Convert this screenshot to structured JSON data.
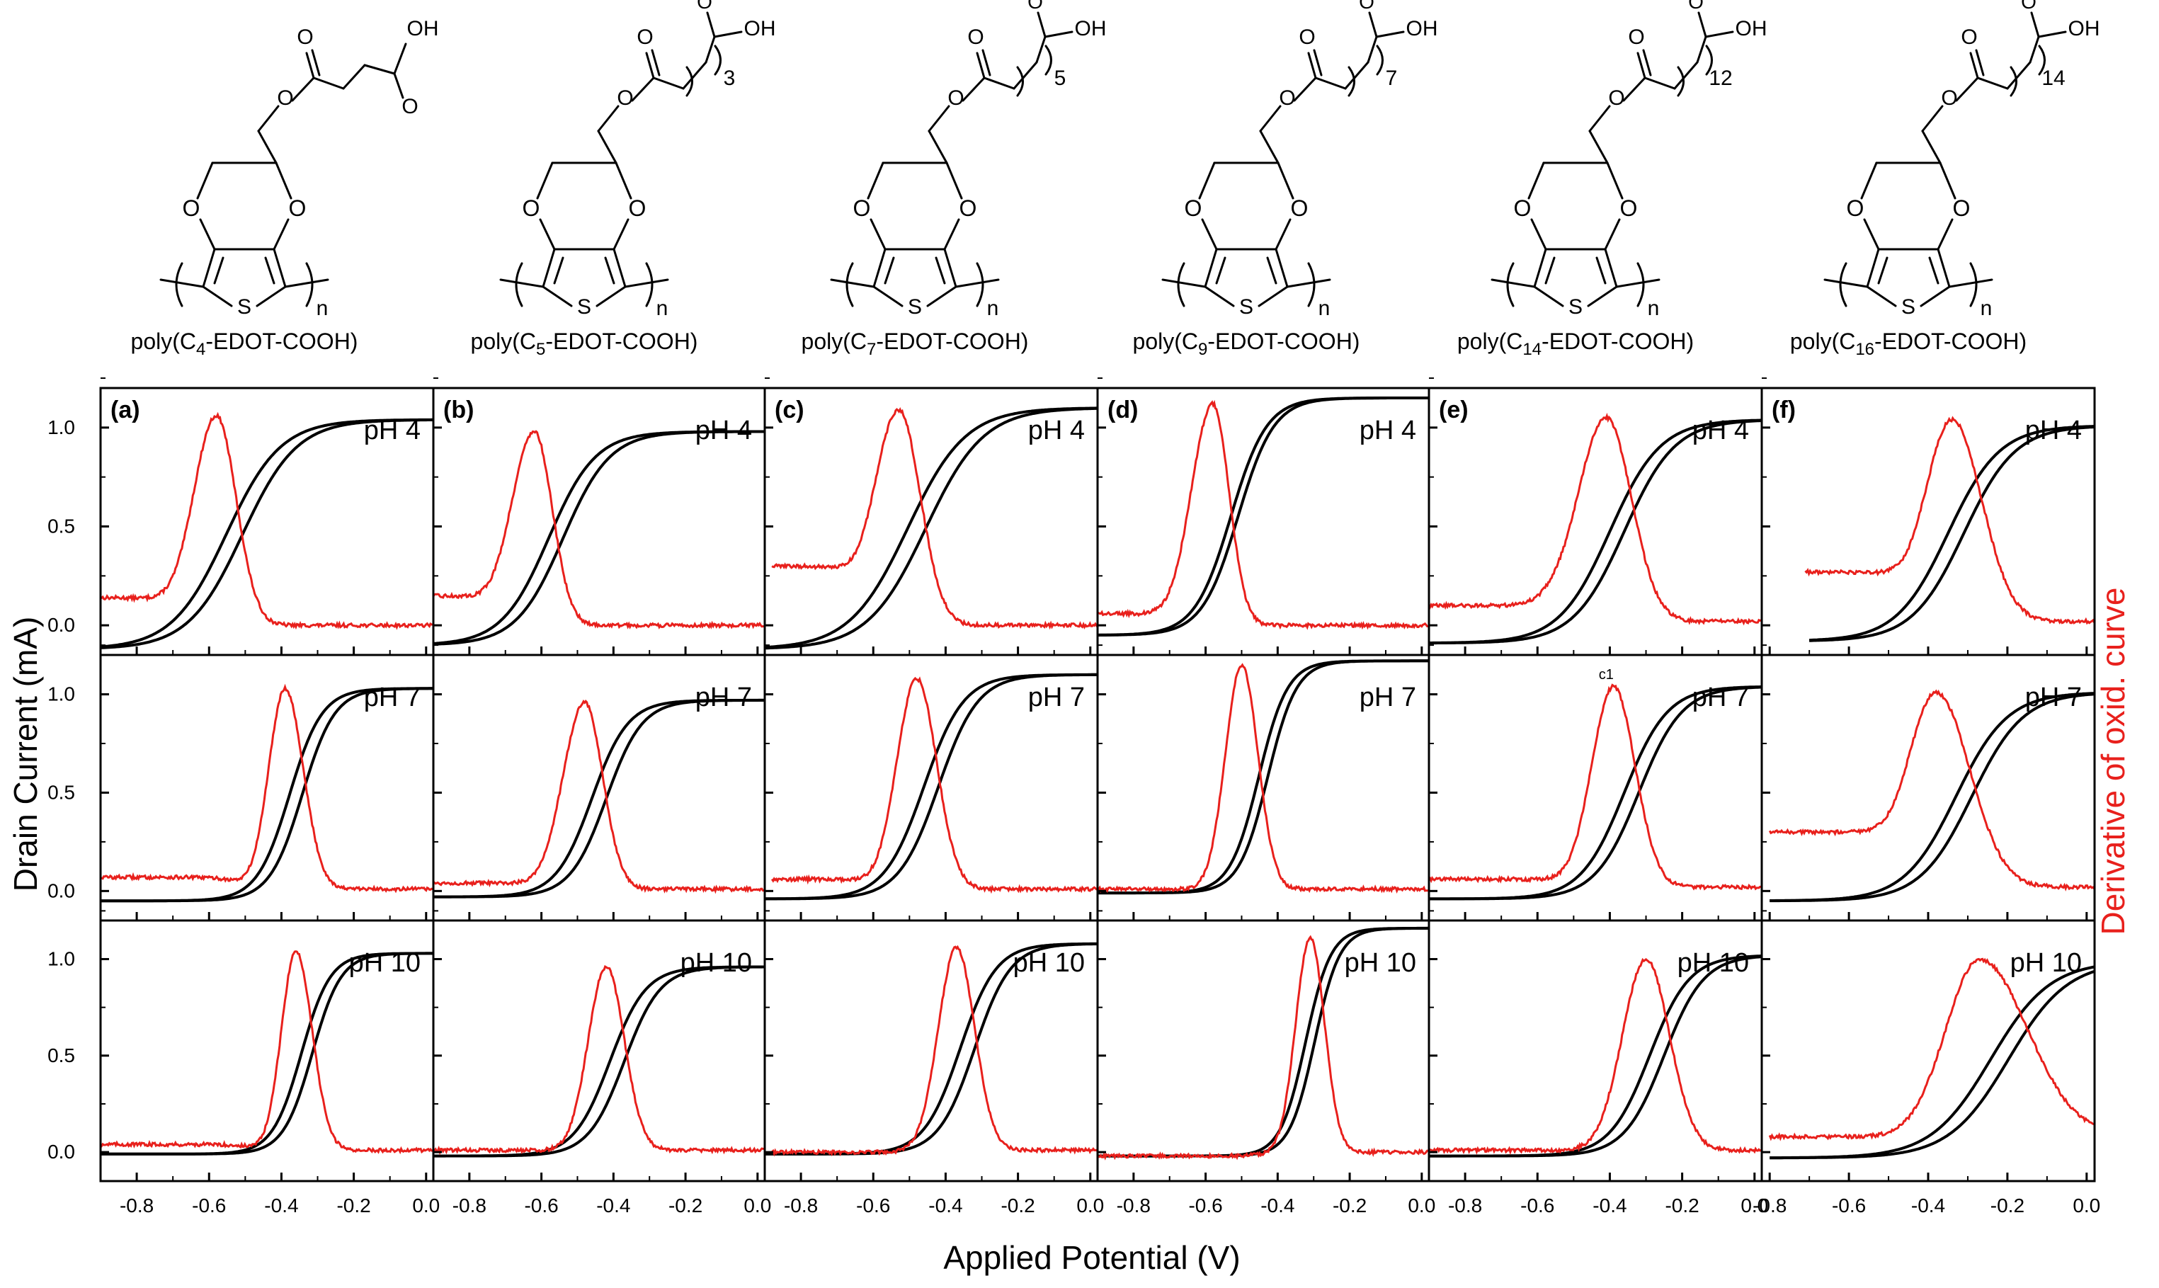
{
  "figure": {
    "y_axis_label": "Drain Current (mA)",
    "y2_axis_label": "Derivative of oxid. curve",
    "x_axis_label": "Applied Potential (V)",
    "colors": {
      "transfer_curve": "#000000",
      "derivative_curve": "#e8201c",
      "frame": "#000000",
      "background": "#ffffff"
    },
    "y_ticks": [
      "0.0",
      "0.5",
      "1.0"
    ],
    "y_tick_values": [
      0.0,
      0.5,
      1.0
    ],
    "extra_annotation": {
      "text": "c1",
      "column": 4,
      "row": 1
    }
  },
  "compounds": [
    {
      "name": "poly(C4-EDOT-COOH)",
      "base": "poly(C",
      "sub": "4",
      "tail": "-EDOT-COOH)",
      "chain_label": ""
    },
    {
      "name": "poly(C5-EDOT-COOH)",
      "base": "poly(C",
      "sub": "5",
      "tail": "-EDOT-COOH)",
      "chain_label": "3"
    },
    {
      "name": "poly(C7-EDOT-COOH)",
      "base": "poly(C",
      "sub": "7",
      "tail": "-EDOT-COOH)",
      "chain_label": "5"
    },
    {
      "name": "poly(C9-EDOT-COOH)",
      "base": "poly(C",
      "sub": "9",
      "tail": "-EDOT-COOH)",
      "chain_label": "7"
    },
    {
      "name": "poly(C14-EDOT-COOH)",
      "base": "poly(C",
      "sub": "14",
      "tail": "-EDOT-COOH)",
      "chain_label": "12"
    },
    {
      "name": "poly(C16-EDOT-COOH)",
      "base": "poly(C",
      "sub": "16",
      "tail": "-EDOT-COOH)",
      "chain_label": "14"
    }
  ],
  "structure_atoms": {
    "o": "O",
    "oh": "OH",
    "s": "S",
    "n": "n"
  },
  "chart_data": {
    "type": "line",
    "layout": "grid-3-rows-6-columns",
    "panel_labels": [
      "(a)",
      "(b)",
      "(c)",
      "(d)",
      "(e)",
      "(f)"
    ],
    "row_labels": [
      "pH 4",
      "pH 7",
      "pH 10"
    ],
    "xlabel": "Applied Potential (V)",
    "ylabel": "Drain Current (mA)",
    "y2label": "Derivative of oxid. curve",
    "ylim": [
      -0.15,
      1.2
    ],
    "grid": false,
    "columns": [
      {
        "label": "(a)",
        "xlim": [
          -0.9,
          0.02
        ],
        "x_ticks": [
          "-0.8",
          "-0.6",
          "-0.4",
          "-0.2",
          "0.0"
        ],
        "x_tick_values": [
          -0.8,
          -0.6,
          -0.4,
          -0.2,
          0.0
        ]
      },
      {
        "label": "(b)",
        "xlim": [
          -0.9,
          0.02
        ],
        "x_ticks": [
          "-0.8",
          "-0.6",
          "-0.4",
          "-0.2",
          "0.0"
        ],
        "x_tick_values": [
          -0.8,
          -0.6,
          -0.4,
          -0.2,
          0.0
        ]
      },
      {
        "label": "(c)",
        "xlim": [
          -0.9,
          0.02
        ],
        "x_ticks": [
          "-0.8",
          "-0.6",
          "-0.4",
          "-0.2",
          "0.0"
        ],
        "x_tick_values": [
          -0.8,
          -0.6,
          -0.4,
          -0.2,
          0.0
        ]
      },
      {
        "label": "(d)",
        "xlim": [
          -0.9,
          0.02
        ],
        "x_ticks": [
          "-0.8",
          "-0.6",
          "-0.4",
          "-0.2",
          "0.0"
        ],
        "x_tick_values": [
          -0.8,
          -0.6,
          -0.4,
          -0.2,
          0.0
        ]
      },
      {
        "label": "(e)",
        "xlim": [
          -0.9,
          0.02
        ],
        "x_ticks": [
          "-0.8",
          "-0.6",
          "-0.4",
          "-0.2",
          "0.0"
        ],
        "x_tick_values": [
          -0.8,
          -0.6,
          -0.4,
          -0.2,
          0.0
        ]
      },
      {
        "label": "(f)",
        "xlim": [
          -0.82,
          0.02
        ],
        "x_ticks": [
          "-0.8",
          "-0.6",
          "-0.4",
          "-0.2",
          "0.0"
        ],
        "x_tick_values": [
          -0.8,
          -0.6,
          -0.4,
          -0.2,
          0.0
        ]
      }
    ],
    "panels": [
      {
        "column": 0,
        "row": 0,
        "ph_label": "pH 4",
        "transfer": {
          "x_start": -0.9,
          "y_start": -0.12,
          "y_max": 1.04,
          "v_half": -0.53,
          "width": 0.075,
          "hysteresis": 0.045
        },
        "derivative": {
          "x_start": -0.9,
          "peak_x": -0.58,
          "peak_y": 1.06,
          "sigma_left": 0.065,
          "sigma_right": 0.055,
          "baseline_left": 0.14,
          "baseline_right": 0.0
        }
      },
      {
        "column": 0,
        "row": 1,
        "ph_label": "pH 7",
        "transfer": {
          "x_start": -0.9,
          "y_start": -0.05,
          "y_max": 1.03,
          "v_half": -0.36,
          "width": 0.045,
          "hysteresis": 0.035
        },
        "derivative": {
          "x_start": -0.9,
          "peak_x": -0.39,
          "peak_y": 1.03,
          "sigma_left": 0.045,
          "sigma_right": 0.05,
          "baseline_left": 0.06,
          "baseline_right": 0.01
        }
      },
      {
        "column": 0,
        "row": 2,
        "ph_label": "pH 10",
        "transfer": {
          "x_start": -0.9,
          "y_start": -0.01,
          "y_max": 1.03,
          "v_half": -0.33,
          "width": 0.04,
          "hysteresis": 0.03
        },
        "derivative": {
          "x_start": -0.9,
          "peak_x": -0.36,
          "peak_y": 1.04,
          "sigma_left": 0.04,
          "sigma_right": 0.045,
          "baseline_left": 0.03,
          "baseline_right": 0.01
        }
      },
      {
        "column": 1,
        "row": 0,
        "ph_label": "pH 4",
        "transfer": {
          "x_start": -0.9,
          "y_start": -0.1,
          "y_max": 0.98,
          "v_half": -0.56,
          "width": 0.065,
          "hysteresis": 0.04
        },
        "derivative": {
          "x_start": -0.9,
          "peak_x": -0.62,
          "peak_y": 0.98,
          "sigma_left": 0.065,
          "sigma_right": 0.05,
          "baseline_left": 0.15,
          "baseline_right": 0.0
        }
      },
      {
        "column": 1,
        "row": 1,
        "ph_label": "pH 7",
        "transfer": {
          "x_start": -0.9,
          "y_start": -0.03,
          "y_max": 0.97,
          "v_half": -0.44,
          "width": 0.05,
          "hysteresis": 0.04
        },
        "derivative": {
          "x_start": -0.9,
          "peak_x": -0.48,
          "peak_y": 0.96,
          "sigma_left": 0.06,
          "sigma_right": 0.05,
          "baseline_left": 0.03,
          "baseline_right": 0.01
        }
      },
      {
        "column": 1,
        "row": 2,
        "ph_label": "pH 10",
        "transfer": {
          "x_start": -0.9,
          "y_start": -0.02,
          "y_max": 0.96,
          "v_half": -0.39,
          "width": 0.05,
          "hysteresis": 0.04
        },
        "derivative": {
          "x_start": -0.9,
          "peak_x": -0.42,
          "peak_y": 0.96,
          "sigma_left": 0.05,
          "sigma_right": 0.05,
          "baseline_left": 0.0,
          "baseline_right": 0.01
        }
      },
      {
        "column": 2,
        "row": 0,
        "ph_label": "pH 4",
        "transfer": {
          "x_start": -0.9,
          "y_start": -0.12,
          "y_max": 1.1,
          "v_half": -0.48,
          "width": 0.08,
          "hysteresis": 0.05
        },
        "derivative": {
          "x_start": -0.88,
          "peak_x": -0.53,
          "peak_y": 1.09,
          "sigma_left": 0.07,
          "sigma_right": 0.06,
          "baseline_left": 0.3,
          "baseline_right": 0.0
        }
      },
      {
        "column": 2,
        "row": 1,
        "ph_label": "pH 7",
        "transfer": {
          "x_start": -0.9,
          "y_start": -0.04,
          "y_max": 1.1,
          "v_half": -0.44,
          "width": 0.055,
          "hysteresis": 0.04
        },
        "derivative": {
          "x_start": -0.88,
          "peak_x": -0.48,
          "peak_y": 1.08,
          "sigma_left": 0.055,
          "sigma_right": 0.055,
          "baseline_left": 0.05,
          "baseline_right": 0.01
        }
      },
      {
        "column": 2,
        "row": 2,
        "ph_label": "pH 10",
        "transfer": {
          "x_start": -0.9,
          "y_start": -0.01,
          "y_max": 1.08,
          "v_half": -0.34,
          "width": 0.05,
          "hysteresis": 0.04
        },
        "derivative": {
          "x_start": -0.88,
          "peak_x": -0.37,
          "peak_y": 1.06,
          "sigma_left": 0.05,
          "sigma_right": 0.05,
          "baseline_left": -0.01,
          "baseline_right": 0.01
        }
      },
      {
        "column": 3,
        "row": 0,
        "ph_label": "pH 4",
        "transfer": {
          "x_start": -0.9,
          "y_start": -0.05,
          "y_max": 1.15,
          "v_half": -0.52,
          "width": 0.05,
          "hysteresis": 0.02
        },
        "derivative": {
          "x_start": -0.9,
          "peak_x": -0.58,
          "peak_y": 1.12,
          "sigma_left": 0.06,
          "sigma_right": 0.045,
          "baseline_left": 0.06,
          "baseline_right": 0.0
        }
      },
      {
        "column": 3,
        "row": 1,
        "ph_label": "pH 7",
        "transfer": {
          "x_start": -0.9,
          "y_start": -0.01,
          "y_max": 1.17,
          "v_half": -0.44,
          "width": 0.04,
          "hysteresis": 0.025
        },
        "derivative": {
          "x_start": -0.9,
          "peak_x": -0.5,
          "peak_y": 1.15,
          "sigma_left": 0.045,
          "sigma_right": 0.045,
          "baseline_left": 0.0,
          "baseline_right": 0.01
        }
      },
      {
        "column": 3,
        "row": 2,
        "ph_label": "pH 10",
        "transfer": {
          "x_start": -0.9,
          "y_start": -0.02,
          "y_max": 1.16,
          "v_half": -0.31,
          "width": 0.035,
          "hysteresis": 0.025
        },
        "derivative": {
          "x_start": -0.9,
          "peak_x": -0.31,
          "peak_y": 1.11,
          "sigma_left": 0.04,
          "sigma_right": 0.04,
          "baseline_left": -0.02,
          "baseline_right": 0.0
        }
      },
      {
        "column": 4,
        "row": 0,
        "ph_label": "pH 4",
        "transfer": {
          "x_start": -0.9,
          "y_start": -0.09,
          "y_max": 1.04,
          "v_half": -0.38,
          "width": 0.07,
          "hysteresis": 0.04
        },
        "derivative": {
          "x_start": -0.9,
          "peak_x": -0.41,
          "peak_y": 1.05,
          "sigma_left": 0.08,
          "sigma_right": 0.07,
          "baseline_left": 0.08,
          "baseline_right": 0.02
        }
      },
      {
        "column": 4,
        "row": 1,
        "ph_label": "pH 7",
        "transfer": {
          "x_start": -0.9,
          "y_start": -0.04,
          "y_max": 1.04,
          "v_half": -0.34,
          "width": 0.06,
          "hysteresis": 0.04
        },
        "derivative": {
          "x_start": -0.9,
          "peak_x": -0.39,
          "peak_y": 1.04,
          "sigma_left": 0.06,
          "sigma_right": 0.06,
          "baseline_left": 0.04,
          "baseline_right": 0.02
        }
      },
      {
        "column": 4,
        "row": 2,
        "ph_label": "pH 10",
        "transfer": {
          "x_start": -0.9,
          "y_start": -0.02,
          "y_max": 1.02,
          "v_half": -0.27,
          "width": 0.055,
          "hysteresis": 0.04
        },
        "derivative": {
          "x_start": -0.9,
          "peak_x": -0.3,
          "peak_y": 1.0,
          "sigma_left": 0.065,
          "sigma_right": 0.065,
          "baseline_left": 0.0,
          "baseline_right": 0.01
        }
      },
      {
        "column": 5,
        "row": 0,
        "ph_label": "pH 4",
        "transfer": {
          "x_start": -0.7,
          "y_start": -0.08,
          "y_max": 1.01,
          "v_half": -0.33,
          "width": 0.065,
          "hysteresis": 0.04
        },
        "derivative": {
          "x_start": -0.71,
          "peak_x": -0.34,
          "peak_y": 1.04,
          "sigma_left": 0.07,
          "sigma_right": 0.075,
          "baseline_left": 0.25,
          "baseline_right": 0.02
        }
      },
      {
        "column": 5,
        "row": 1,
        "ph_label": "pH 7",
        "transfer": {
          "x_start": -0.8,
          "y_start": -0.05,
          "y_max": 1.01,
          "v_half": -0.31,
          "width": 0.065,
          "hysteresis": 0.04
        },
        "derivative": {
          "x_start": -0.8,
          "peak_x": -0.38,
          "peak_y": 1.01,
          "sigma_left": 0.075,
          "sigma_right": 0.085,
          "baseline_left": 0.28,
          "baseline_right": 0.02
        }
      },
      {
        "column": 5,
        "row": 2,
        "ph_label": "pH 10",
        "transfer": {
          "x_start": -0.8,
          "y_start": -0.03,
          "y_max": 0.99,
          "v_half": -0.22,
          "width": 0.075,
          "hysteresis": 0.045
        },
        "derivative": {
          "x_start": -0.8,
          "peak_x": -0.27,
          "peak_y": 1.0,
          "sigma_left": 0.085,
          "sigma_right": 0.12,
          "baseline_left": -0.01,
          "baseline_right": 0.09
        }
      }
    ]
  }
}
